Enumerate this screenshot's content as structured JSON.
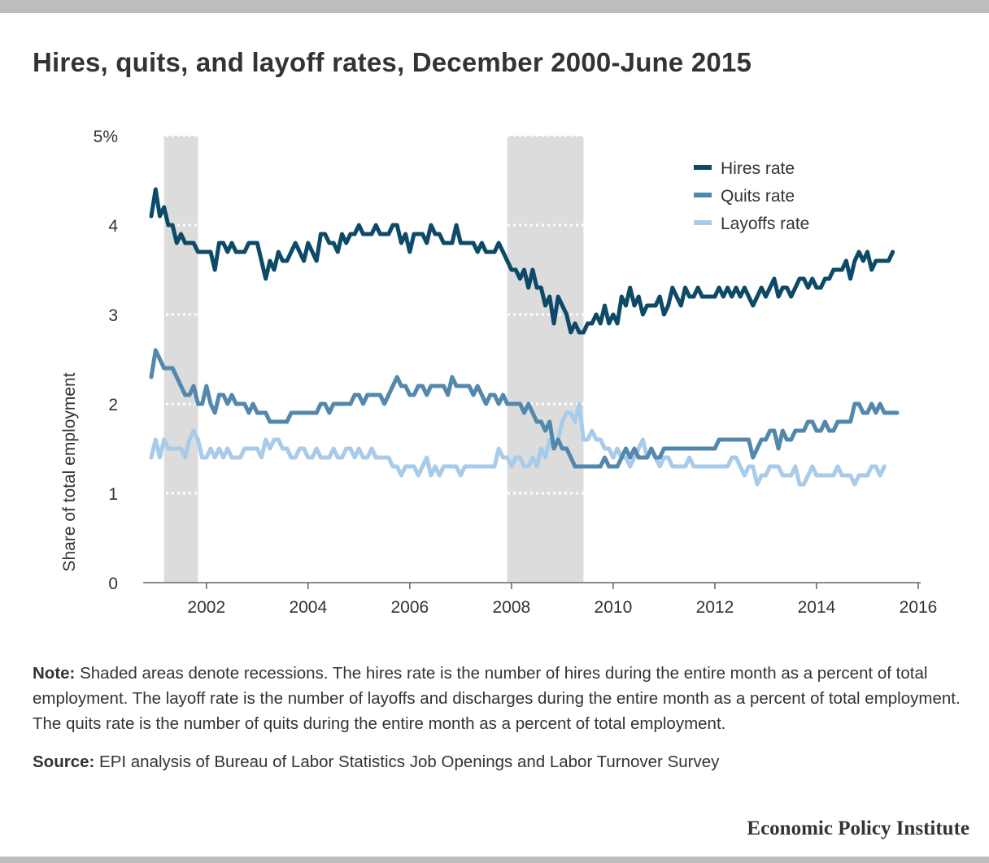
{
  "title": "Hires, quits, and layoff rates, December 2000-June 2015",
  "note_label": "Note:",
  "note_text": "Shaded areas denote recessions. The hires rate is the number of hires during the entire month as a percent of total employment. The layoff rate is the number of layoffs and discharges during the entire month as a percent of total employment. The quits rate is the number of quits during the entire month as a percent of total employment.",
  "source_label": "Source:",
  "source_text": "EPI analysis of Bureau of Labor Statistics Job Openings and Labor Turnover Survey",
  "brand": "Economic Policy Institute",
  "colors": {
    "hires": "#0d4a68",
    "quits": "#5288ad",
    "layoffs": "#a8cbea",
    "recession": "#dcdcdc"
  },
  "chart_data": {
    "type": "line",
    "title": "Hires, quits, and layoff rates, December 2000-June 2015",
    "xlabel": "",
    "ylabel": "Share of total employment",
    "x_start": "2000-12",
    "x_frequency": "monthly",
    "xlim": [
      2000.5,
      2016
    ],
    "ylim": [
      0,
      5
    ],
    "x_ticks": [
      2002,
      2004,
      2006,
      2008,
      2010,
      2012,
      2014,
      2016
    ],
    "y_ticks": [
      0,
      1,
      2,
      3,
      4,
      5
    ],
    "y_tick_labels": [
      "0",
      "1",
      "2",
      "3",
      "4",
      "5%"
    ],
    "recessions": [
      [
        "2001-03",
        "2001-11"
      ],
      [
        "2007-12",
        "2009-06"
      ]
    ],
    "legend_position": "top-right",
    "grid": "dotted horizontal",
    "series": [
      {
        "name": "Hires rate",
        "color": "#0d4a68",
        "values": [
          4.1,
          4.4,
          4.1,
          4.2,
          4.0,
          4.0,
          3.8,
          3.9,
          3.8,
          3.8,
          3.8,
          3.7,
          3.7,
          3.7,
          3.7,
          3.5,
          3.8,
          3.8,
          3.7,
          3.8,
          3.7,
          3.7,
          3.7,
          3.8,
          3.8,
          3.8,
          3.6,
          3.4,
          3.6,
          3.5,
          3.7,
          3.6,
          3.6,
          3.7,
          3.8,
          3.7,
          3.6,
          3.8,
          3.7,
          3.6,
          3.9,
          3.9,
          3.8,
          3.8,
          3.7,
          3.9,
          3.8,
          3.9,
          3.9,
          4.0,
          3.9,
          3.9,
          3.9,
          4.0,
          3.9,
          3.9,
          3.9,
          4.0,
          4.0,
          3.8,
          3.9,
          3.7,
          3.9,
          3.9,
          3.9,
          3.8,
          4.0,
          3.9,
          3.9,
          3.8,
          3.8,
          3.8,
          4.0,
          3.8,
          3.8,
          3.8,
          3.8,
          3.7,
          3.8,
          3.7,
          3.7,
          3.7,
          3.8,
          3.7,
          3.6,
          3.5,
          3.5,
          3.4,
          3.5,
          3.3,
          3.5,
          3.3,
          3.3,
          3.1,
          3.2,
          2.9,
          3.2,
          3.1,
          3.0,
          2.8,
          2.9,
          2.8,
          2.8,
          2.9,
          2.9,
          3.0,
          2.9,
          3.1,
          2.9,
          3.0,
          2.9,
          3.2,
          3.1,
          3.3,
          3.1,
          3.2,
          3.0,
          3.1,
          3.1,
          3.1,
          3.2,
          3.0,
          3.1,
          3.3,
          3.2,
          3.1,
          3.3,
          3.2,
          3.2,
          3.3,
          3.2,
          3.2,
          3.2,
          3.2,
          3.3,
          3.2,
          3.3,
          3.2,
          3.3,
          3.2,
          3.3,
          3.2,
          3.1,
          3.2,
          3.3,
          3.2,
          3.3,
          3.4,
          3.2,
          3.3,
          3.3,
          3.2,
          3.3,
          3.4,
          3.4,
          3.3,
          3.4,
          3.3,
          3.3,
          3.4,
          3.4,
          3.5,
          3.5,
          3.5,
          3.6,
          3.4,
          3.6,
          3.7,
          3.6,
          3.7,
          3.5,
          3.6,
          3.6,
          3.6,
          3.6,
          3.7
        ]
      },
      {
        "name": "Quits rate",
        "color": "#5288ad",
        "values": [
          2.3,
          2.6,
          2.5,
          2.4,
          2.4,
          2.4,
          2.3,
          2.2,
          2.1,
          2.1,
          2.2,
          2.0,
          2.0,
          2.2,
          2.0,
          1.9,
          2.1,
          2.1,
          2.0,
          2.1,
          2.0,
          2.0,
          2.0,
          1.9,
          2.0,
          1.9,
          1.9,
          1.9,
          1.8,
          1.8,
          1.8,
          1.8,
          1.8,
          1.9,
          1.9,
          1.9,
          1.9,
          1.9,
          1.9,
          1.9,
          2.0,
          2.0,
          1.9,
          2.0,
          2.0,
          2.0,
          2.0,
          2.0,
          2.1,
          2.1,
          2.0,
          2.1,
          2.1,
          2.1,
          2.1,
          2.0,
          2.1,
          2.2,
          2.3,
          2.2,
          2.2,
          2.1,
          2.1,
          2.2,
          2.2,
          2.1,
          2.2,
          2.2,
          2.2,
          2.2,
          2.1,
          2.3,
          2.2,
          2.2,
          2.2,
          2.2,
          2.1,
          2.2,
          2.1,
          2.0,
          2.1,
          2.1,
          2.0,
          2.1,
          2.0,
          2.0,
          2.0,
          2.0,
          1.9,
          2.0,
          1.9,
          1.8,
          1.8,
          1.7,
          1.8,
          1.5,
          1.6,
          1.5,
          1.5,
          1.4,
          1.3,
          1.3,
          1.3,
          1.3,
          1.3,
          1.3,
          1.3,
          1.4,
          1.3,
          1.3,
          1.3,
          1.4,
          1.5,
          1.4,
          1.5,
          1.4,
          1.4,
          1.4,
          1.5,
          1.4,
          1.4,
          1.5,
          1.5,
          1.5,
          1.5,
          1.5,
          1.5,
          1.5,
          1.5,
          1.5,
          1.5,
          1.5,
          1.5,
          1.5,
          1.6,
          1.6,
          1.6,
          1.6,
          1.6,
          1.6,
          1.6,
          1.6,
          1.4,
          1.5,
          1.6,
          1.6,
          1.7,
          1.7,
          1.5,
          1.7,
          1.6,
          1.6,
          1.7,
          1.7,
          1.7,
          1.8,
          1.8,
          1.7,
          1.7,
          1.8,
          1.7,
          1.7,
          1.8,
          1.8,
          1.8,
          1.8,
          2.0,
          2.0,
          1.9,
          1.9,
          2.0,
          1.9,
          2.0,
          1.9,
          1.9,
          1.9,
          1.9
        ]
      },
      {
        "name": "Layoffs rate",
        "color": "#a8cbea",
        "values": [
          1.4,
          1.6,
          1.4,
          1.6,
          1.5,
          1.5,
          1.5,
          1.5,
          1.4,
          1.6,
          1.7,
          1.6,
          1.4,
          1.4,
          1.5,
          1.4,
          1.5,
          1.4,
          1.5,
          1.4,
          1.4,
          1.4,
          1.5,
          1.5,
          1.5,
          1.5,
          1.4,
          1.6,
          1.5,
          1.6,
          1.6,
          1.5,
          1.5,
          1.4,
          1.4,
          1.5,
          1.5,
          1.4,
          1.4,
          1.5,
          1.4,
          1.4,
          1.4,
          1.5,
          1.4,
          1.4,
          1.5,
          1.5,
          1.4,
          1.5,
          1.4,
          1.4,
          1.5,
          1.4,
          1.4,
          1.4,
          1.4,
          1.3,
          1.3,
          1.2,
          1.3,
          1.3,
          1.3,
          1.2,
          1.3,
          1.4,
          1.2,
          1.3,
          1.2,
          1.3,
          1.3,
          1.3,
          1.3,
          1.2,
          1.3,
          1.3,
          1.3,
          1.3,
          1.3,
          1.3,
          1.3,
          1.3,
          1.5,
          1.4,
          1.4,
          1.3,
          1.4,
          1.4,
          1.3,
          1.3,
          1.4,
          1.3,
          1.5,
          1.4,
          1.6,
          1.5,
          1.6,
          1.8,
          1.9,
          1.9,
          1.8,
          2.0,
          1.6,
          1.6,
          1.7,
          1.6,
          1.6,
          1.5,
          1.5,
          1.4,
          1.5,
          1.4,
          1.4,
          1.3,
          1.4,
          1.5,
          1.6,
          1.4,
          1.5,
          1.4,
          1.3,
          1.4,
          1.4,
          1.3,
          1.3,
          1.3,
          1.3,
          1.4,
          1.3,
          1.3,
          1.3,
          1.3,
          1.3,
          1.3,
          1.3,
          1.3,
          1.3,
          1.4,
          1.4,
          1.3,
          1.2,
          1.3,
          1.3,
          1.1,
          1.2,
          1.2,
          1.3,
          1.3,
          1.3,
          1.2,
          1.2,
          1.2,
          1.3,
          1.1,
          1.1,
          1.2,
          1.3,
          1.2,
          1.2,
          1.2,
          1.2,
          1.2,
          1.3,
          1.2,
          1.2,
          1.2,
          1.1,
          1.2,
          1.2,
          1.2,
          1.3,
          1.3,
          1.2,
          1.3
        ]
      }
    ]
  }
}
